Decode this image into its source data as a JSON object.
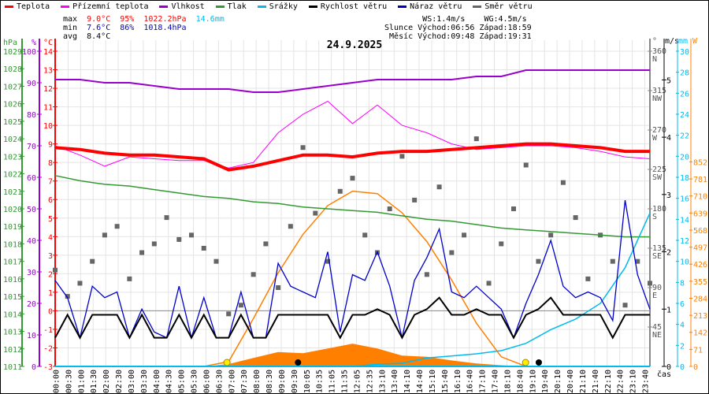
{
  "legend": [
    {
      "label": "Teplota",
      "color": "#ff0000"
    },
    {
      "label": "Přízemní teplota",
      "color": "#ff00ff"
    },
    {
      "label": "Vlhkost",
      "color": "#9900cc"
    },
    {
      "label": "Tlak",
      "color": "#339933"
    },
    {
      "label": "Srážky",
      "color": "#00bbee"
    },
    {
      "label": "Rychlost větru",
      "color": "#000000"
    },
    {
      "label": "Náraz větru",
      "color": "#0000cc"
    },
    {
      "label": "Směr větru",
      "color": "#666666"
    }
  ],
  "stats": {
    "max_label": "max",
    "max_temp": "9.0°C",
    "max_hum": "95%",
    "max_press": "1022.2hPa",
    "max_rain": "14.6mm",
    "min_label": "min",
    "min_temp": "7.6°C",
    "min_hum": "86%",
    "min_press": "1018.4hPa",
    "avg_label": "avg",
    "avg_temp": "8.4°C"
  },
  "astro": {
    "ws": "WS:1.4m/s",
    "wg": "WG:4.5m/s",
    "sun_label": "Slunce",
    "sun_rise": "Východ:06:56",
    "sun_set": "Západ:18:59",
    "moon_label": "Měsíc",
    "moon_rise": "Východ:09:48",
    "moon_set": "Západ:19:31"
  },
  "chart_data": {
    "type": "line",
    "title": "24.9.2025",
    "xlabel": "čas",
    "x_tick_labels": [
      "00:00",
      "00:30",
      "01:00",
      "01:30",
      "02:00",
      "02:30",
      "03:00",
      "03:30",
      "04:00",
      "04:30",
      "05:00",
      "05:30",
      "06:00",
      "06:30",
      "07:00",
      "07:30",
      "08:00",
      "08:30",
      "09:00",
      "09:30",
      "10:05",
      "10:35",
      "11:05",
      "11:35",
      "12:05",
      "12:35",
      "13:10",
      "13:40",
      "14:10",
      "14:40",
      "15:10",
      "15:40",
      "16:10",
      "16:40",
      "17:10",
      "17:40",
      "18:10",
      "18:40",
      "19:10",
      "19:40",
      "20:10",
      "20:40",
      "21:10",
      "21:40",
      "22:10",
      "22:40",
      "23:10",
      "23:40"
    ],
    "axes": {
      "pressure": {
        "unit": "hPa",
        "range": [
          1011,
          1029
        ],
        "ticks": [
          1011,
          1012,
          1013,
          1014,
          1015,
          1016,
          1017,
          1018,
          1019,
          1020,
          1021,
          1022,
          1023,
          1024,
          1025,
          1026,
          1027,
          1028,
          1029
        ],
        "color": "#339933"
      },
      "humidity": {
        "unit": "%",
        "range": [
          0,
          100
        ],
        "ticks": [
          0,
          10,
          20,
          30,
          40,
          50,
          60,
          70,
          80,
          90,
          100
        ],
        "color": "#9900cc"
      },
      "temperature": {
        "unit": "°C",
        "range": [
          -3,
          14
        ],
        "ticks": [
          -3,
          -2,
          -1,
          0,
          1,
          2,
          3,
          4,
          5,
          6,
          7,
          8,
          9,
          10,
          11,
          12,
          13,
          14
        ],
        "color": "#ff0000"
      },
      "direction": {
        "unit": "°",
        "range": [
          0,
          360
        ],
        "ticks": [
          {
            "v": 45,
            "l": "NE"
          },
          {
            "v": 90,
            "l": "E"
          },
          {
            "v": 135,
            "l": "SE"
          },
          {
            "v": 180,
            "l": "S"
          },
          {
            "v": 225,
            "l": "SW"
          },
          {
            "v": 270,
            "l": "W"
          },
          {
            "v": 315,
            "l": "NW"
          },
          {
            "v": 360,
            "l": "N"
          }
        ],
        "color": "#666666"
      },
      "wind": {
        "unit": "m/s",
        "range": [
          0,
          5.5
        ],
        "ticks": [
          0,
          1,
          2,
          3,
          4,
          5
        ],
        "color": "#000000"
      },
      "rain": {
        "unit": "mm",
        "range": [
          0,
          30
        ],
        "ticks": [
          0,
          2,
          4,
          6,
          8,
          10,
          12,
          14,
          16,
          18,
          20,
          22,
          24,
          26,
          28,
          30
        ],
        "color": "#00bbee"
      },
      "solar": {
        "unit": "W",
        "range": [
          0,
          1313
        ],
        "ticks": [
          0,
          71,
          142,
          213,
          284,
          355,
          426,
          497,
          568,
          639,
          710,
          781,
          852
        ],
        "color": "#ff8000"
      }
    },
    "hours": [
      0,
      1,
      2,
      3,
      4,
      5,
      6,
      7,
      8,
      9,
      10,
      11,
      12,
      13,
      14,
      15,
      16,
      17,
      18,
      19,
      20,
      21,
      22,
      23,
      24
    ],
    "series": [
      {
        "name": "Teplota",
        "axis": "temperature",
        "values": [
          8.8,
          8.7,
          8.5,
          8.4,
          8.4,
          8.3,
          8.2,
          7.6,
          7.8,
          8.1,
          8.4,
          8.4,
          8.3,
          8.5,
          8.6,
          8.6,
          8.7,
          8.8,
          8.9,
          9.0,
          9.0,
          8.9,
          8.8,
          8.6,
          8.6
        ]
      },
      {
        "name": "Přízemní teplota",
        "axis": "temperature",
        "values": [
          8.9,
          8.4,
          7.8,
          8.3,
          8.2,
          8.1,
          8.1,
          7.7,
          8.0,
          9.6,
          10.6,
          11.3,
          10.1,
          11.1,
          10.0,
          9.6,
          9.0,
          8.7,
          8.8,
          8.9,
          8.9,
          8.8,
          8.6,
          8.3,
          8.2
        ]
      },
      {
        "name": "Vlhkost",
        "axis": "humidity",
        "values": [
          91,
          91,
          90,
          90,
          89,
          88,
          88,
          88,
          87,
          87,
          88,
          89,
          90,
          91,
          91,
          91,
          91,
          92,
          92,
          94,
          94,
          94,
          94,
          94,
          94
        ]
      },
      {
        "name": "Tlak",
        "axis": "pressure",
        "values": [
          1021.9,
          1021.6,
          1021.4,
          1021.3,
          1021.1,
          1020.9,
          1020.7,
          1020.6,
          1020.4,
          1020.3,
          1020.1,
          1020.0,
          1019.9,
          1019.8,
          1019.6,
          1019.4,
          1019.3,
          1019.1,
          1018.9,
          1018.8,
          1018.7,
          1018.6,
          1018.5,
          1018.4,
          1018.4
        ]
      },
      {
        "name": "Srážky",
        "axis": "rain",
        "values": [
          0,
          0,
          0,
          0,
          0,
          0,
          0,
          0,
          0,
          0,
          0,
          0,
          0,
          0.2,
          0.3,
          0.8,
          1.0,
          1.2,
          1.5,
          2.2,
          3.5,
          4.5,
          6.0,
          9.4,
          14.6
        ]
      },
      {
        "name": "Sluneční záření",
        "axis": "solar",
        "values": [
          0,
          0,
          0,
          0,
          0,
          0,
          0,
          10,
          35,
          60,
          55,
          75,
          95,
          75,
          45,
          40,
          25,
          12,
          5,
          0,
          0,
          0,
          0,
          0,
          0
        ]
      },
      {
        "name": "Teoretické záření",
        "axis": "solar",
        "values": [
          0,
          0,
          0,
          0,
          0,
          0,
          0,
          20,
          200,
          390,
          550,
          670,
          730,
          720,
          640,
          520,
          360,
          180,
          40,
          0,
          0,
          0,
          0,
          0,
          0
        ]
      }
    ],
    "half_hours": "0..24 step 0.5",
    "wind_speed": [
      0.5,
      0.9,
      0.5,
      0.9,
      0.9,
      0.9,
      0.5,
      0.9,
      0.5,
      0.5,
      0.9,
      0.5,
      0.9,
      0.5,
      0.5,
      0.9,
      0.5,
      0.5,
      0.9,
      0.9,
      0.9,
      0.9,
      0.9,
      0.5,
      0.9,
      0.9,
      1.0,
      0.9,
      0.5,
      0.9,
      1.0,
      1.2,
      0.9,
      0.9,
      1.0,
      0.9,
      0.9,
      0.5,
      0.9,
      1.0,
      1.2,
      0.9,
      0.9,
      0.9,
      0.9,
      0.5,
      0.9,
      0.9,
      0.9
    ],
    "wind_gust": [
      1.5,
      1.2,
      0.5,
      1.4,
      1.2,
      1.3,
      0.5,
      1.0,
      0.6,
      0.5,
      1.4,
      0.5,
      1.2,
      0.5,
      0.5,
      1.3,
      0.5,
      0.5,
      1.8,
      1.4,
      1.3,
      1.2,
      2.0,
      0.6,
      1.6,
      1.5,
      2.0,
      1.4,
      0.5,
      1.5,
      1.9,
      2.4,
      1.3,
      1.2,
      1.4,
      1.2,
      1.0,
      0.5,
      1.1,
      1.6,
      2.2,
      1.4,
      1.2,
      1.3,
      1.2,
      0.8,
      2.9,
      1.6,
      1.0
    ],
    "wind_direction": [
      110,
      80,
      95,
      120,
      150,
      160,
      100,
      130,
      140,
      170,
      145,
      150,
      135,
      120,
      60,
      70,
      105,
      140,
      90,
      160,
      250,
      175,
      120,
      200,
      215,
      150,
      130,
      180,
      240,
      190,
      105,
      205,
      130,
      150,
      260,
      95,
      140,
      180,
      230,
      120,
      150,
      210,
      170,
      100,
      150,
      120,
      70,
      120,
      95
    ],
    "markers": [
      {
        "type": "sunrise",
        "time": "06:56"
      },
      {
        "type": "sunset",
        "time": "18:59"
      },
      {
        "type": "moonrise",
        "time": "09:48"
      },
      {
        "type": "moonset",
        "time": "19:31"
      }
    ]
  }
}
